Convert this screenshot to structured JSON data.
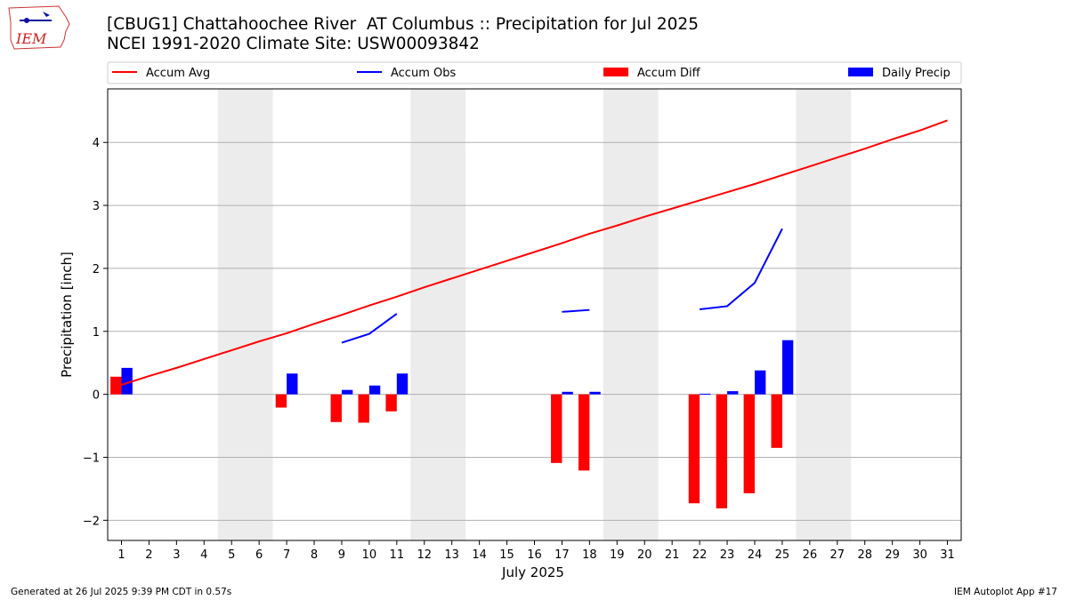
{
  "header": {
    "title": "[CBUG1] Chattahoochee River  AT Columbus :: Precipitation for Jul 2025",
    "subtitle": "NCEI 1991-2020 Climate Site: USW00093842",
    "logo_text": "IEM"
  },
  "footer": {
    "generated": "Generated at 26 Jul 2025 9:39 PM CDT in 0.57s",
    "app": "IEM Autoplot App #17"
  },
  "colors": {
    "accum_avg": "#ff0000",
    "accum_obs": "#0000ff",
    "accum_diff": "#ff0000",
    "daily_precip": "#0000ff",
    "weekend_shade": "#ececec",
    "grid": "#b0b0b0"
  },
  "chart_data": {
    "type": "bar+line",
    "title": "[CBUG1] Chattahoochee River  AT Columbus :: Precipitation for Jul 2025",
    "subtitle": "NCEI 1991-2020 Climate Site: USW00093842",
    "xlabel": "July 2025",
    "ylabel": "Precipitation [inch]",
    "xlim": [
      0.5,
      31.5
    ],
    "ylim": [
      -2.32,
      4.85
    ],
    "yticks": [
      -2,
      -1,
      0,
      1,
      2,
      3,
      4
    ],
    "ytick_labels": [
      "−2",
      "−1",
      "0",
      "1",
      "2",
      "3",
      "4"
    ],
    "xticks": [
      1,
      2,
      3,
      4,
      5,
      6,
      7,
      8,
      9,
      10,
      11,
      12,
      13,
      14,
      15,
      16,
      17,
      18,
      19,
      20,
      21,
      22,
      23,
      24,
      25,
      26,
      27,
      28,
      29,
      30,
      31
    ],
    "grid": "horizontal",
    "legend_position": "top, above plot, 4 columns",
    "legend": [
      "Accum Avg",
      "Accum Obs",
      "Accum Diff",
      "Daily Precip"
    ],
    "shaded_weekends": [
      [
        4.5,
        6.5
      ],
      [
        11.5,
        13.5
      ],
      [
        18.5,
        20.5
      ],
      [
        25.5,
        27.5
      ]
    ],
    "series": [
      {
        "name": "Accum Avg",
        "kind": "line",
        "x": [
          1,
          2,
          3,
          4,
          5,
          6,
          7,
          8,
          9,
          10,
          11,
          12,
          13,
          14,
          15,
          16,
          17,
          18,
          19,
          20,
          21,
          22,
          23,
          24,
          25,
          26,
          27,
          28,
          29,
          30,
          31
        ],
        "values": [
          0.15,
          0.29,
          0.42,
          0.56,
          0.7,
          0.84,
          0.97,
          1.12,
          1.26,
          1.41,
          1.55,
          1.7,
          1.84,
          1.98,
          2.12,
          2.26,
          2.4,
          2.55,
          2.68,
          2.82,
          2.95,
          3.08,
          3.21,
          3.34,
          3.48,
          3.62,
          3.76,
          3.9,
          4.05,
          4.19,
          4.35
        ]
      },
      {
        "name": "Accum Obs",
        "kind": "line",
        "segments": [
          {
            "x": [
              9,
              10,
              11
            ],
            "values": [
              0.82,
              0.96,
              1.28
            ]
          },
          {
            "x": [
              17,
              18
            ],
            "values": [
              1.31,
              1.34
            ]
          },
          {
            "x": [
              22,
              23,
              24,
              25
            ],
            "values": [
              1.35,
              1.4,
              1.77,
              2.63
            ]
          }
        ]
      },
      {
        "name": "Accum Diff",
        "kind": "bar",
        "x": [
          1,
          7,
          9,
          10,
          11,
          17,
          18,
          22,
          23,
          24,
          25
        ],
        "values": [
          0.28,
          -0.21,
          -0.44,
          -0.45,
          -0.27,
          -1.09,
          -1.21,
          -1.73,
          -1.81,
          -1.57,
          -0.85
        ]
      },
      {
        "name": "Daily Precip",
        "kind": "bar",
        "x": [
          1,
          7,
          9,
          10,
          11,
          17,
          18,
          22,
          23,
          24,
          25
        ],
        "values": [
          0.42,
          0.33,
          0.07,
          0.14,
          0.33,
          0.04,
          0.04,
          0.01,
          0.05,
          0.38,
          0.86
        ]
      }
    ]
  }
}
